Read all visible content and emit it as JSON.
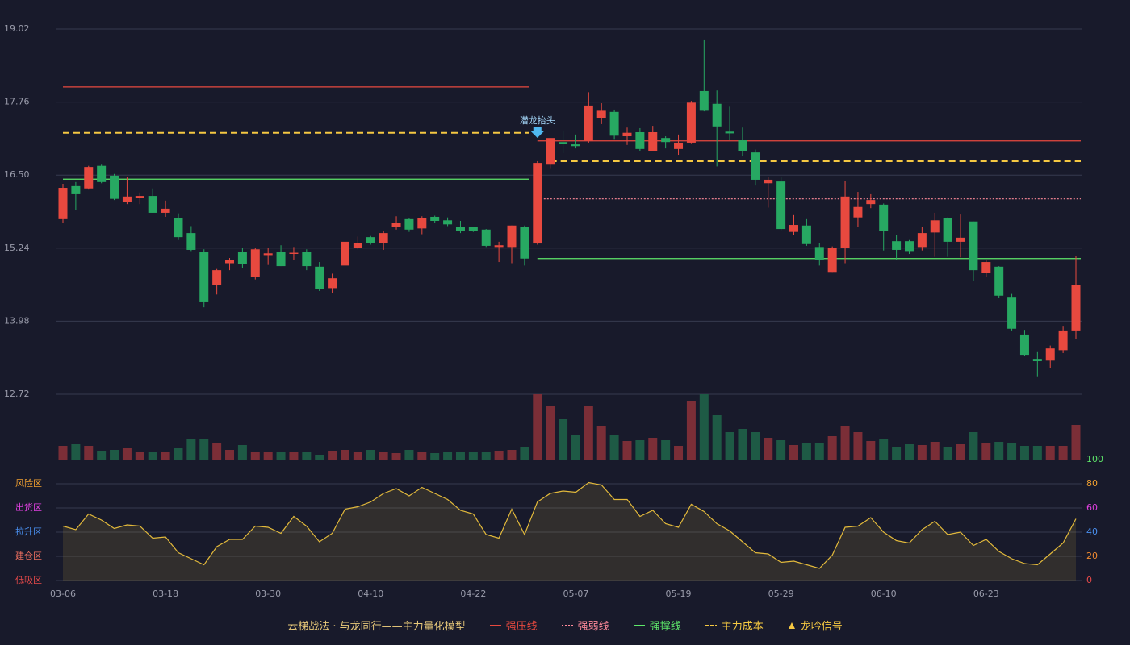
{
  "chart_data": [
    {
      "type": "candlestick",
      "ylim": [
        12.72,
        19.02
      ],
      "yticks": [
        12.72,
        13.98,
        15.24,
        {
          "value": 16.5,
          "label": "16.50"
        },
        17.76,
        19.02
      ],
      "up_color": "#e8493f",
      "down_color": "#27a862",
      "open": [
        15.74,
        16.31,
        16.27,
        16.66,
        16.49,
        16.04,
        16.11,
        16.14,
        15.85,
        15.76,
        15.5,
        15.17,
        14.6,
        14.98,
        15.17,
        14.75,
        15.12,
        15.18,
        15.14,
        15.18,
        14.92,
        14.55,
        14.94,
        15.25,
        15.43,
        15.33,
        15.6,
        15.74,
        15.58,
        15.78,
        15.72,
        15.6,
        15.6,
        15.56,
        15.26,
        15.26,
        15.61,
        15.32,
        16.68,
        17.07,
        17.03,
        17.09,
        17.49,
        17.59,
        17.17,
        17.24,
        16.92,
        17.14,
        16.95,
        17.06,
        17.95,
        17.73,
        17.25,
        17.1,
        16.89,
        16.36,
        16.39,
        15.52,
        15.63,
        15.26,
        14.83,
        15.25,
        15.77,
        16.0,
        15.99,
        15.36,
        15.36,
        15.26,
        15.51,
        15.76,
        15.35,
        15.7,
        14.81,
        14.92,
        14.4,
        13.75,
        13.33,
        13.3,
        13.48,
        13.82
      ],
      "high": [
        16.35,
        16.38,
        16.66,
        16.68,
        16.52,
        16.46,
        16.2,
        16.27,
        16.06,
        15.84,
        15.62,
        15.22,
        14.88,
        15.07,
        15.24,
        15.25,
        15.24,
        15.29,
        15.26,
        15.22,
        15.0,
        14.8,
        15.37,
        15.44,
        15.45,
        15.53,
        15.79,
        15.76,
        15.79,
        15.8,
        15.77,
        15.71,
        15.61,
        15.57,
        15.35,
        15.63,
        15.63,
        16.74,
        17.14,
        17.27,
        17.2,
        17.93,
        17.74,
        17.63,
        17.32,
        17.31,
        17.35,
        17.17,
        17.2,
        17.78,
        18.84,
        17.96,
        17.68,
        17.32,
        16.94,
        16.46,
        16.46,
        15.81,
        15.74,
        15.33,
        15.27,
        16.4,
        16.21,
        16.17,
        16.01,
        15.46,
        15.38,
        15.61,
        15.85,
        15.77,
        15.82,
        15.7,
        15.04,
        14.93,
        14.45,
        13.83,
        13.46,
        13.56,
        13.9,
        15.11
      ],
      "low": [
        15.68,
        15.9,
        16.25,
        16.36,
        16.07,
        16.0,
        16.0,
        15.85,
        15.78,
        15.38,
        15.19,
        14.22,
        14.44,
        14.86,
        14.9,
        14.7,
        14.95,
        14.93,
        15.03,
        14.86,
        14.5,
        14.46,
        14.93,
        15.22,
        15.3,
        15.21,
        15.56,
        15.52,
        15.48,
        15.67,
        15.62,
        15.5,
        15.52,
        15.26,
        15.0,
        14.98,
        14.94,
        15.3,
        16.62,
        16.88,
        16.96,
        17.06,
        17.38,
        17.11,
        17.02,
        16.92,
        16.92,
        16.96,
        16.85,
        17.05,
        17.6,
        16.65,
        17.1,
        16.83,
        16.32,
        15.94,
        15.55,
        15.46,
        15.28,
        14.94,
        14.83,
        14.98,
        15.61,
        15.93,
        15.2,
        15.03,
        15.14,
        15.2,
        15.09,
        15.09,
        15.08,
        14.68,
        14.74,
        14.38,
        13.82,
        13.38,
        13.03,
        13.17,
        13.43,
        13.67
      ],
      "close": [
        16.28,
        16.17,
        16.64,
        16.38,
        16.09,
        16.13,
        16.14,
        15.85,
        15.92,
        15.43,
        15.21,
        14.32,
        14.86,
        15.03,
        14.97,
        15.22,
        15.15,
        14.93,
        15.16,
        14.93,
        14.53,
        14.72,
        15.35,
        15.33,
        15.33,
        15.5,
        15.67,
        15.56,
        15.76,
        15.71,
        15.65,
        15.54,
        15.53,
        15.28,
        15.29,
        15.63,
        15.06,
        16.71,
        17.14,
        17.04,
        17.0,
        17.7,
        17.61,
        17.18,
        17.23,
        16.95,
        17.24,
        17.07,
        17.06,
        17.75,
        17.61,
        17.34,
        17.22,
        16.92,
        16.42,
        16.42,
        15.57,
        15.64,
        15.31,
        15.03,
        15.25,
        16.13,
        15.95,
        16.07,
        15.53,
        15.21,
        15.19,
        15.5,
        15.72,
        15.35,
        15.42,
        14.86,
        15.0,
        14.42,
        13.85,
        13.4,
        13.29,
        13.51,
        13.82,
        14.61
      ],
      "legend_title": "云梯战法 · 与龙同行——主力量化模型",
      "levels": [
        {
          "name": "强压线",
          "color": "#e8493f",
          "style": "solid",
          "segments": [
            {
              "from": 0,
              "to": 36,
              "value": 18.02
            },
            {
              "from": 37,
              "to": 79,
              "value": 17.09
            }
          ]
        },
        {
          "name": "强弱线",
          "color": "#ff8a9a",
          "style": "dotted",
          "segments": [
            {
              "from": 37,
              "to": 79,
              "value": 16.09
            }
          ]
        },
        {
          "name": "强撑线",
          "color": "#5ee86a",
          "style": "solid",
          "segments": [
            {
              "from": 0,
              "to": 36,
              "value": 16.43
            },
            {
              "from": 37,
              "to": 79,
              "value": 15.06
            }
          ]
        },
        {
          "name": "主力成本",
          "color": "#f5c842",
          "style": "dashed",
          "segments": [
            {
              "from": 0,
              "to": 36,
              "value": 17.23
            },
            {
              "from": 38,
              "to": 79,
              "value": 16.74
            }
          ]
        }
      ],
      "signal": {
        "name": "龙吟信号",
        "color": "#f5c842"
      },
      "annotations": [
        {
          "text": "潜龙抬头",
          "index": 37,
          "color": "#4fb8f0"
        }
      ]
    },
    {
      "type": "bar",
      "up_color": "#7b2e37",
      "down_color": "#1e5a45",
      "values": [
        17,
        19,
        17,
        11,
        12,
        14,
        9,
        10,
        10,
        14,
        26,
        26,
        20,
        12,
        18,
        10,
        10,
        9,
        9,
        10,
        6,
        11,
        12,
        9,
        12,
        10,
        8,
        12,
        9,
        8,
        9,
        9,
        9,
        10,
        11,
        12,
        15,
        81,
        67,
        50,
        30,
        67,
        42,
        31,
        23,
        24,
        27,
        24,
        17,
        73,
        81,
        55,
        34,
        38,
        34,
        27,
        24,
        18,
        20,
        20,
        29,
        42,
        34,
        23,
        26,
        16,
        19,
        18,
        22,
        16,
        19,
        34,
        21,
        22,
        21,
        17,
        17,
        17,
        17,
        43
      ]
    },
    {
      "type": "line",
      "color": "#e2b93b",
      "categories": [
        "03-06",
        null,
        null,
        null,
        null,
        null,
        null,
        null,
        "03-18",
        null,
        null,
        null,
        null,
        null,
        null,
        null,
        "03-30",
        null,
        null,
        null,
        null,
        null,
        null,
        null,
        "04-10",
        null,
        null,
        null,
        null,
        null,
        null,
        null,
        "04-22",
        null,
        null,
        null,
        null,
        null,
        null,
        null,
        "05-07",
        null,
        null,
        null,
        null,
        null,
        null,
        null,
        "05-19",
        null,
        null,
        null,
        null,
        null,
        null,
        null,
        "05-29",
        null,
        null,
        null,
        null,
        null,
        null,
        null,
        "06-10",
        null,
        null,
        null,
        null,
        null,
        null,
        null,
        "06-23",
        null,
        null,
        null,
        null,
        null,
        null,
        null
      ],
      "values": [
        45,
        42,
        55,
        50,
        43,
        46,
        45,
        35,
        36,
        23,
        18,
        13,
        28,
        34,
        34,
        45,
        44,
        39,
        53,
        45,
        32,
        39,
        59,
        61,
        65,
        72,
        76,
        70,
        77,
        72,
        67,
        58,
        55,
        38,
        35,
        59,
        38,
        65,
        72,
        74,
        73,
        81,
        79,
        67,
        67,
        53,
        58,
        47,
        44,
        63,
        57,
        47,
        41,
        32,
        23,
        22,
        15,
        16,
        13,
        10,
        21,
        44,
        45,
        52,
        40,
        33,
        31,
        42,
        49,
        38,
        40,
        29,
        34,
        24,
        18,
        14,
        13,
        22,
        31,
        51
      ],
      "ylim": [
        0,
        100
      ],
      "yticks": [
        0,
        20,
        40,
        60,
        80,
        100
      ],
      "ytick_colors": [
        "#e84a4a",
        "#f08a30",
        "#4a90f0",
        "#e040e0",
        "#f0a030",
        "#5ee86a"
      ],
      "zones": [
        {
          "value": 0,
          "label": "低吸区",
          "color": "#e84a4a"
        },
        {
          "value": 20,
          "label": "建仓区",
          "color": "#f07060"
        },
        {
          "value": 40,
          "label": "拉升区",
          "color": "#4a90f0"
        },
        {
          "value": 60,
          "label": "出货区",
          "color": "#e040e0"
        },
        {
          "value": 80,
          "label": "风险区",
          "color": "#f0a030"
        }
      ]
    }
  ]
}
